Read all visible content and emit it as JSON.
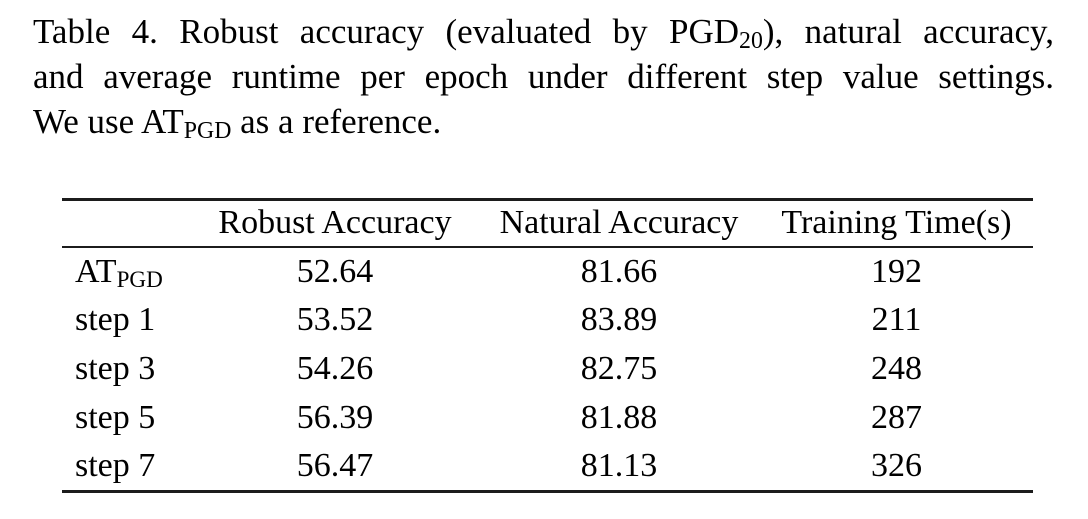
{
  "caption": {
    "line1_pre": "Table 4. Robust accuracy (evaluated by PGD",
    "line1_sub": "20",
    "line1_post": "), natural accuracy,",
    "line2": "and average runtime per epoch under different step value settings.",
    "line3_pre": "We use AT",
    "line3_sub": "PGD",
    "line3_post": " as a reference."
  },
  "table": {
    "columns": [
      "",
      "Robust Accuracy",
      "Natural Accuracy",
      "Training Time(s)"
    ],
    "rows": [
      {
        "label_pre": "AT",
        "label_sub": "PGD",
        "values": [
          "52.64",
          "81.66",
          "192"
        ]
      },
      {
        "label": "step 1",
        "values": [
          "53.52",
          "83.89",
          "211"
        ]
      },
      {
        "label": "step 3",
        "values": [
          "54.26",
          "82.75",
          "248"
        ]
      },
      {
        "label": "step 5",
        "values": [
          "56.39",
          "81.88",
          "287"
        ]
      },
      {
        "label": "step 7",
        "values": [
          "56.47",
          "81.13",
          "326"
        ]
      }
    ]
  },
  "colors": {
    "text": "#000000",
    "background": "#ffffff",
    "rule": "#1c1c1c"
  }
}
